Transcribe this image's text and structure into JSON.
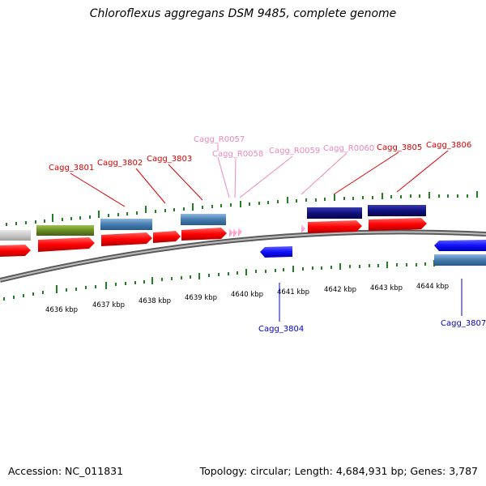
{
  "title": "Chloroflexus aggregans DSM 9485, complete genome",
  "footer": {
    "accession": "Accession: NC_011831",
    "topology": "Topology: circular; Length: 4,684,931 bp; Genes: 3,787"
  },
  "colors": {
    "cds_red": "#ff0000",
    "rna_pink": "#ff99cc",
    "gene_steelblue": "#4a80b4",
    "gene_navy": "#101080",
    "gene_blue": "#1010ff",
    "gene_olive": "#6b8e23",
    "gene_gray": "#c8c8c8",
    "tick_green": "#208020",
    "backbone_gray": "#808080"
  },
  "scale": {
    "labels": [
      "4636 kbp",
      "4637 kbp",
      "4638 kbp",
      "4639 kbp",
      "4640 kbp",
      "4641 kbp",
      "4642 kbp",
      "4643 kbp",
      "4644 kbp"
    ]
  },
  "labels": {
    "top": [
      {
        "name": "Cagg_3801",
        "color": "#dd0000"
      },
      {
        "name": "Cagg_3802",
        "color": "#dd0000"
      },
      {
        "name": "Cagg_3803",
        "color": "#dd0000"
      },
      {
        "name": "Cagg_R0057",
        "color": "#ee88bb"
      },
      {
        "name": "Cagg_R0058",
        "color": "#ee88bb"
      },
      {
        "name": "Cagg_R0059",
        "color": "#ee88bb"
      },
      {
        "name": "Cagg_R0060",
        "color": "#ee88bb"
      },
      {
        "name": "Cagg_3805",
        "color": "#dd0000"
      },
      {
        "name": "Cagg_3806",
        "color": "#dd0000"
      }
    ],
    "bottom": [
      {
        "name": "Cagg_3804",
        "color": "#0000cc"
      },
      {
        "name": "Cagg_3807",
        "color": "#0000cc"
      }
    ]
  }
}
